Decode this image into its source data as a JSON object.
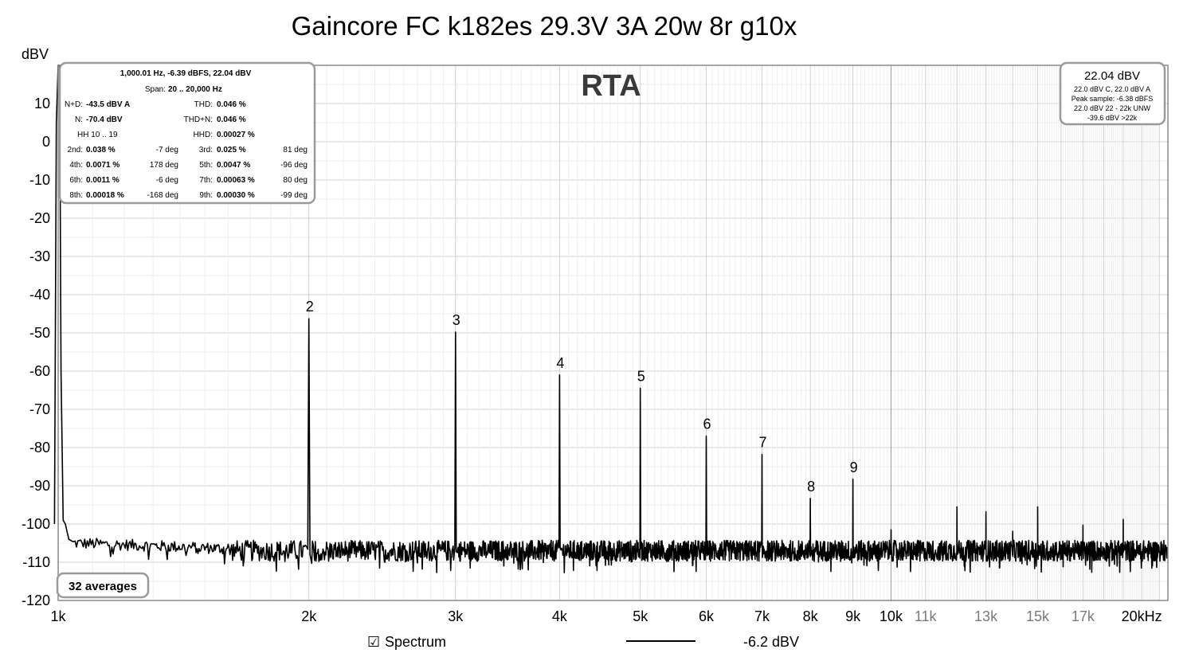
{
  "chart_data": {
    "type": "line",
    "title": "Gaincore FC k182es 29.3V 3A 20w 8r g10x",
    "ylabel": "dBV",
    "xlabel": "",
    "x_scale": "log",
    "xlim": [
      1000,
      21500
    ],
    "ylim": [
      -120,
      20
    ],
    "grid": true,
    "watermark": "RTA",
    "y_ticks": [
      "10",
      "0",
      "-10",
      "-20",
      "-30",
      "-40",
      "-50",
      "-60",
      "-70",
      "-80",
      "-90",
      "-100",
      "-110",
      "-120"
    ],
    "x_ticks": [
      {
        "value": 1000,
        "label": "1k",
        "major": true
      },
      {
        "value": 2000,
        "label": "2k",
        "major": true
      },
      {
        "value": 3000,
        "label": "3k",
        "major": true
      },
      {
        "value": 4000,
        "label": "4k",
        "major": true
      },
      {
        "value": 5000,
        "label": "5k",
        "major": true
      },
      {
        "value": 6000,
        "label": "6k",
        "major": true
      },
      {
        "value": 7000,
        "label": "7k",
        "major": true
      },
      {
        "value": 8000,
        "label": "8k",
        "major": true
      },
      {
        "value": 9000,
        "label": "9k",
        "major": true
      },
      {
        "value": 10000,
        "label": "10k",
        "major": true
      },
      {
        "value": 11000,
        "label": "11k",
        "major": false
      },
      {
        "value": 13000,
        "label": "13k",
        "major": false
      },
      {
        "value": 15000,
        "label": "15k",
        "major": false
      },
      {
        "value": 17000,
        "label": "17k",
        "major": false
      },
      {
        "value": 20000,
        "label": "20kHz",
        "major": true
      }
    ],
    "fundamental": {
      "x": 1000,
      "y": 22.04
    },
    "noise_floor_dbv": -107,
    "harmonics": [
      {
        "label": "2",
        "x": 2000,
        "y": -46.3
      },
      {
        "label": "3",
        "x": 3000,
        "y": -49.8
      },
      {
        "label": "4",
        "x": 4000,
        "y": -61.0
      },
      {
        "label": "5",
        "x": 5000,
        "y": -64.5
      },
      {
        "label": "6",
        "x": 6000,
        "y": -77.0
      },
      {
        "label": "7",
        "x": 7000,
        "y": -81.8
      },
      {
        "label": "8",
        "x": 8000,
        "y": -93.3
      },
      {
        "label": "9",
        "x": 9000,
        "y": -88.3
      }
    ],
    "spurs": [
      {
        "x": 10000,
        "y": -101.5
      },
      {
        "x": 12000,
        "y": -95.5
      },
      {
        "x": 13000,
        "y": -96.8
      },
      {
        "x": 14000,
        "y": -101.9
      },
      {
        "x": 15000,
        "y": -95.5
      },
      {
        "x": 17000,
        "y": -100.3
      },
      {
        "x": 19000,
        "y": -98.8
      }
    ],
    "series": [
      {
        "name": "Spectrum",
        "legend_value": "-6.2 dBV",
        "color": "#000000"
      }
    ]
  },
  "stats_box": {
    "header": "1,000.01 Hz, -6.39 dBFS, 22.04 dBV",
    "span_label": "Span:",
    "span_value": "20 .. 20,000 Hz",
    "rows": [
      {
        "l1": "N+D:",
        "v1": "-43.5 dBV A",
        "l2": "THD:",
        "v2": "0.046 %"
      },
      {
        "l1": "N:",
        "v1": "-70.4 dBV",
        "l2": "THD+N:",
        "v2": "0.046 %"
      },
      {
        "l1": "",
        "v1": "HH 10 .. 19",
        "l2": "HHD:",
        "v2": "0.00027 %"
      }
    ],
    "harm_rows": [
      {
        "l1": "2nd:",
        "v1": "0.038 %",
        "p1": "-7 deg",
        "l2": "3rd:",
        "v2": "0.025 %",
        "p2": "81 deg"
      },
      {
        "l1": "4th:",
        "v1": "0.0071 %",
        "p1": "178 deg",
        "l2": "5th:",
        "v2": "0.0047 %",
        "p2": "-96 deg"
      },
      {
        "l1": "6th:",
        "v1": "0.0011 %",
        "p1": "-6 deg",
        "l2": "7th:",
        "v2": "0.00063 %",
        "p2": "80 deg"
      },
      {
        "l1": "8th:",
        "v1": "0.00018 %",
        "p1": "-168 deg",
        "l2": "9th:",
        "v2": "0.00030 %",
        "p2": "-99 deg"
      }
    ]
  },
  "level_box": {
    "value": "22.04 dBV",
    "lines": [
      "22.0 dBV C, 22.0 dBV A",
      "Peak sample: -6.38 dBFS",
      "22.0 dBV 22 - 22k UNW",
      "-39.6 dBV >22k"
    ]
  },
  "averages_label": "32 averages",
  "legend": {
    "checkbox": "☑",
    "label": "Spectrum",
    "value": "-6.2 dBV"
  }
}
